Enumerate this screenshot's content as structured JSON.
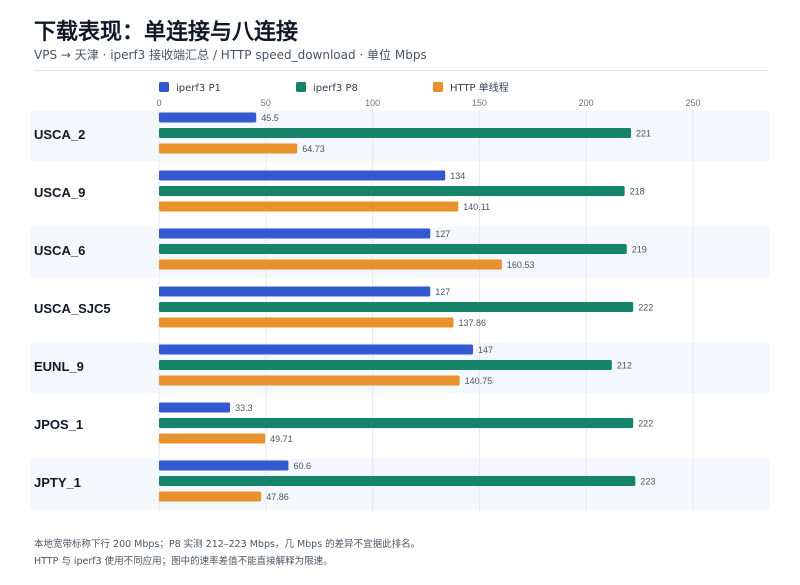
{
  "header": {
    "title": "下载表现：单连接与八连接",
    "subtitle": "VPS → 天津 · iperf3 接收端汇总 / HTTP speed_download · 单位 Mbps"
  },
  "notes": [
    "本地宽带标称下行 200 Mbps；P8 实测 212–223 Mbps，几 Mbps 的差异不宜据此排名。",
    "HTTP 与 iperf3 使用不同应用；图中的速率差值不能直接解释为限速。"
  ],
  "colors": {
    "p1": "#3358cf",
    "p8": "#158468",
    "http": "#e9922d",
    "band": "#f4f7fb",
    "grid": "#e6e9ef"
  },
  "chart_data": {
    "type": "bar",
    "orientation": "horizontal",
    "title": "下载表现：单连接与八连接",
    "xlim": [
      0,
      250
    ],
    "xticks": [
      0,
      50,
      100,
      150,
      200,
      250
    ],
    "legend_position": "top",
    "grid": true,
    "categories": [
      "USCA_2",
      "USCA_9",
      "USCA_6",
      "USCA_SJC5",
      "EUNL_9",
      "JPOS_1",
      "JPTY_1"
    ],
    "series": [
      {
        "name": "iperf3 P1",
        "color": "#3358cf",
        "values": [
          45.5,
          134,
          127,
          127,
          147,
          33.3,
          60.6
        ]
      },
      {
        "name": "iperf3 P8",
        "color": "#158468",
        "values": [
          221,
          218,
          219,
          222,
          212,
          222,
          223
        ]
      },
      {
        "name": "HTTP 单线程",
        "color": "#e9922d",
        "values": [
          64.73,
          140.11,
          160.53,
          137.86,
          140.75,
          49.71,
          47.86
        ]
      }
    ]
  }
}
